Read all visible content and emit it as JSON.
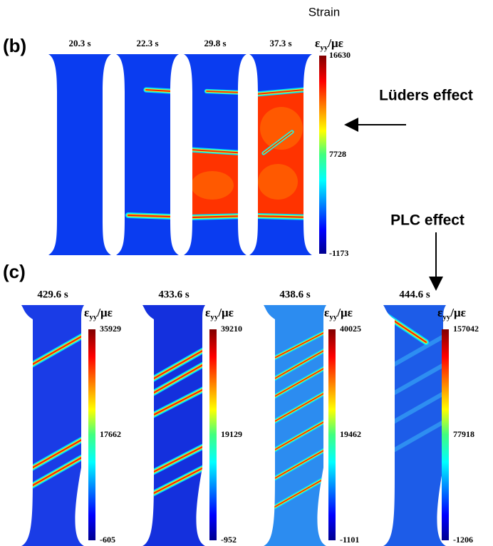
{
  "title": "Strain",
  "panel_b": {
    "label": "(b)",
    "annotation": "Lüders effect",
    "times": [
      "20.3 s",
      "22.3 s",
      "29.8 s",
      "37.3 s"
    ],
    "colorbar": {
      "symbol": "ε",
      "subscript": "yy",
      "unit": "/με",
      "ticks": [
        16630,
        7728,
        -1173
      ]
    }
  },
  "panel_c": {
    "label": "(c)",
    "annotation": "PLC effect",
    "specimens": [
      {
        "time": "429.6 s",
        "colorbar": {
          "symbol": "ε",
          "subscript": "yy",
          "unit": "/με",
          "ticks": [
            35929,
            17662,
            -605
          ]
        }
      },
      {
        "time": "433.6 s",
        "colorbar": {
          "symbol": "ε",
          "subscript": "yy",
          "unit": "/με",
          "ticks": [
            39210,
            19129,
            -952
          ]
        }
      },
      {
        "time": "438.6 s",
        "colorbar": {
          "symbol": "ε",
          "subscript": "yy",
          "unit": "/με",
          "ticks": [
            40025,
            19462,
            -1101
          ]
        }
      },
      {
        "time": "444.6 s",
        "colorbar": {
          "symbol": "ε",
          "subscript": "yy",
          "unit": "/με",
          "ticks": [
            157042,
            77918,
            -1206
          ]
        }
      }
    ]
  }
}
